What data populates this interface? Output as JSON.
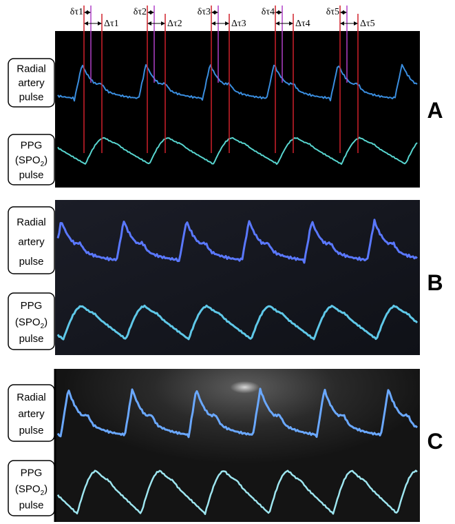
{
  "intervals": [
    {
      "small": "δτ1",
      "large": "Δτ1"
    },
    {
      "small": "δτ2",
      "large": "Δτ2"
    },
    {
      "small": "δτ3",
      "large": "Δτ3"
    },
    {
      "small": "δτ4",
      "large": "Δτ4"
    },
    {
      "small": "δτ5",
      "large": "Δτ5"
    }
  ],
  "panels": [
    {
      "letter": "A",
      "radial_label": [
        "Radial",
        "artery",
        "pulse"
      ],
      "ppg_label": {
        "first": "PPG",
        "open": "(SPO",
        "sub": "2",
        "close": ")",
        "last": "pulse"
      }
    },
    {
      "letter": "B",
      "radial_label": [
        "Radial",
        "artery",
        "pulse"
      ],
      "ppg_label": {
        "first": "PPG",
        "open": "(SPO",
        "sub": "2",
        "close": ")",
        "last": "pulse"
      }
    },
    {
      "letter": "C",
      "radial_label": [
        "Radial",
        "artery",
        "pulse"
      ],
      "ppg_label": {
        "first": "PPG",
        "open": "(SPO",
        "sub": "2",
        "close": ")",
        "last": "pulse"
      }
    }
  ]
}
